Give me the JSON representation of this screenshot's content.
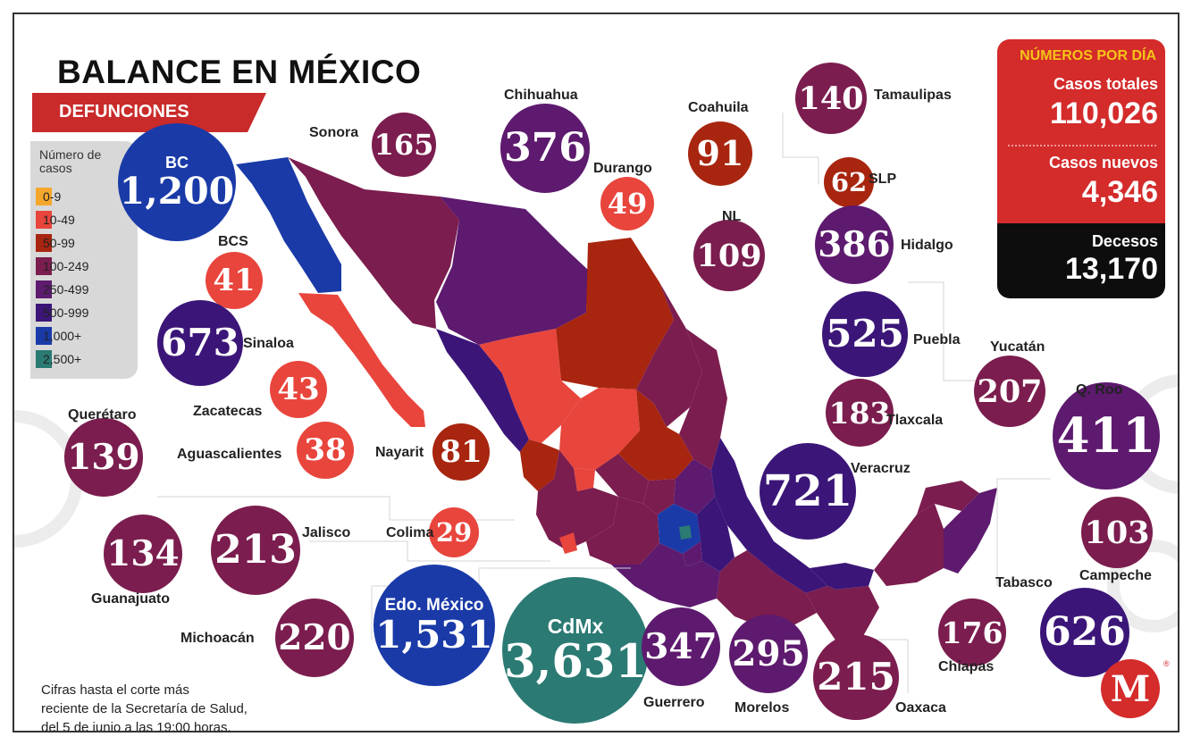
{
  "header": {
    "title_main": "BALANCE EN ",
    "title_strong": "MÉXICO",
    "subtitle": "DEFUNCIONES"
  },
  "legend": {
    "title": "Número de casos",
    "items": [
      {
        "label": "0-9",
        "color": "#f4a72c"
      },
      {
        "label": "10-49",
        "color": "#e8453c"
      },
      {
        "label": "50-99",
        "color": "#a8250f"
      },
      {
        "label": "100-249",
        "color": "#7b1d4e"
      },
      {
        "label": "250-499",
        "color": "#5d1a6e"
      },
      {
        "label": "500-999",
        "color": "#3b1678"
      },
      {
        "label": "1,000+",
        "color": "#1a3aa8"
      },
      {
        "label": "2,500+",
        "color": "#2b7a74"
      }
    ]
  },
  "states": [
    {
      "name": "BC",
      "value": "1,200",
      "color": "#1a3aa8",
      "label_inside": true
    },
    {
      "name": "Sonora",
      "value": "165",
      "color": "#7b1d4e"
    },
    {
      "name": "Chihuahua",
      "value": "376",
      "color": "#5d1a6e"
    },
    {
      "name": "Coahuila",
      "value": "91",
      "color": "#a8250f"
    },
    {
      "name": "Tamaulipas",
      "value": "140",
      "color": "#7b1d4e"
    },
    {
      "name": "Durango",
      "value": "49",
      "color": "#e8453c"
    },
    {
      "name": "SLP",
      "value": "62",
      "color": "#a8250f"
    },
    {
      "name": "NL",
      "value": "109",
      "color": "#7b1d4e"
    },
    {
      "name": "Hidalgo",
      "value": "386",
      "color": "#5d1a6e"
    },
    {
      "name": "BCS",
      "value": "41",
      "color": "#e8453c"
    },
    {
      "name": "Sinaloa",
      "value": "673",
      "color": "#3b1678"
    },
    {
      "name": "Puebla",
      "value": "525",
      "color": "#3b1678"
    },
    {
      "name": "Yucatán",
      "value": "207",
      "color": "#7b1d4e"
    },
    {
      "name": "Zacatecas",
      "value": "43",
      "color": "#e8453c"
    },
    {
      "name": "Tlaxcala",
      "value": "183",
      "color": "#7b1d4e"
    },
    {
      "name": "Q. Roo",
      "value": "411",
      "color": "#5d1a6e"
    },
    {
      "name": "Querétaro",
      "value": "139",
      "color": "#7b1d4e"
    },
    {
      "name": "Aguascalientes",
      "value": "38",
      "color": "#e8453c"
    },
    {
      "name": "Nayarit",
      "value": "81",
      "color": "#a8250f"
    },
    {
      "name": "Veracruz",
      "value": "721",
      "color": "#3b1678"
    },
    {
      "name": "Guanajuato",
      "value": "134",
      "color": "#7b1d4e"
    },
    {
      "name": "Jalisco",
      "value": "213",
      "color": "#7b1d4e"
    },
    {
      "name": "Colima",
      "value": "29",
      "color": "#e8453c"
    },
    {
      "name": "Campeche",
      "value": "103",
      "color": "#7b1d4e"
    },
    {
      "name": "Tabasco",
      "value": "626",
      "color": "#3b1678"
    },
    {
      "name": "Michoacán",
      "value": "220",
      "color": "#7b1d4e"
    },
    {
      "name": "Edo. México",
      "value": "1,531",
      "color": "#1a3aa8",
      "label_inside": true
    },
    {
      "name": "CdMx",
      "value": "3,631",
      "color": "#2b7a74",
      "label_inside": true
    },
    {
      "name": "Guerrero",
      "value": "347",
      "color": "#5d1a6e"
    },
    {
      "name": "Morelos",
      "value": "295",
      "color": "#5d1a6e"
    },
    {
      "name": "Oaxaca",
      "value": "215",
      "color": "#7b1d4e"
    },
    {
      "name": "Chiapas",
      "value": "176",
      "color": "#7b1d4e"
    }
  ],
  "panel": {
    "heading": "NÚMEROS POR DÍA",
    "total_label": "Casos totales",
    "total_value": "110,026",
    "new_label": "Casos nuevos",
    "new_value": "4,346",
    "deaths_label": "Decesos",
    "deaths_value": "13,170"
  },
  "footnote": [
    "Cifras hasta el corte más",
    "reciente de la Secretaría de Salud,",
    "del 5 de junio a las 19:00 horas."
  ],
  "brand": {
    "logo_letter": "M",
    "registered_mark": "®"
  }
}
